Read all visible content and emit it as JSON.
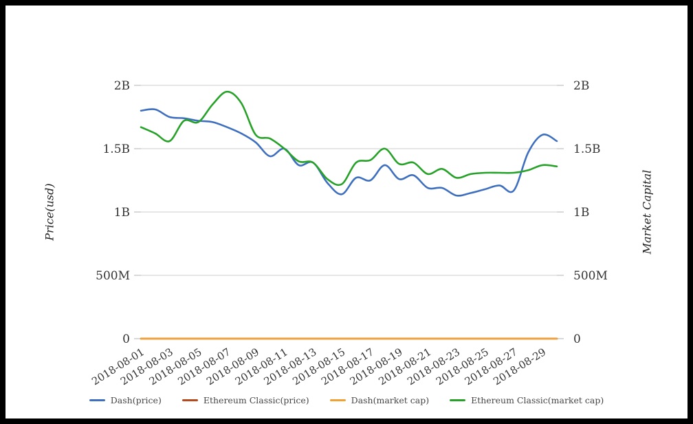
{
  "window": {
    "background_color": "#ffffff",
    "frame_border_color": "#000000"
  },
  "colors": {
    "grid": "#cccccc",
    "tick_mark": "#b0b0b0",
    "tick_label": "#333333",
    "axis_title": "#222222",
    "legend_text": "#444444"
  },
  "chart_data": {
    "type": "line",
    "title": "",
    "left_axis_label": "Price(usd)",
    "right_axis_label": "Market Capital",
    "grid": true,
    "legend_position": "bottom",
    "ylim": [
      0,
      2.15
    ],
    "y_ticks": [
      {
        "value": 0,
        "label": "0"
      },
      {
        "value": 0.5,
        "label": "500M"
      },
      {
        "value": 1,
        "label": "1B"
      },
      {
        "value": 1.5,
        "label": "1.5B"
      },
      {
        "value": 2,
        "label": "2B"
      }
    ],
    "x": [
      "2018-08-01",
      "2018-08-02",
      "2018-08-03",
      "2018-08-04",
      "2018-08-05",
      "2018-08-06",
      "2018-08-07",
      "2018-08-08",
      "2018-08-09",
      "2018-08-10",
      "2018-08-11",
      "2018-08-12",
      "2018-08-13",
      "2018-08-14",
      "2018-08-15",
      "2018-08-16",
      "2018-08-17",
      "2018-08-18",
      "2018-08-19",
      "2018-08-20",
      "2018-08-21",
      "2018-08-22",
      "2018-08-23",
      "2018-08-24",
      "2018-08-25",
      "2018-08-26",
      "2018-08-27",
      "2018-08-28",
      "2018-08-29",
      "2018-08-30"
    ],
    "x_tick_labels": [
      "2018-08-01",
      "2018-08-03",
      "2018-08-05",
      "2018-08-07",
      "2018-08-09",
      "2018-08-11",
      "2018-08-13",
      "2018-08-15",
      "2018-08-17",
      "2018-08-19",
      "2018-08-21",
      "2018-08-23",
      "2018-08-25",
      "2018-08-27",
      "2018-08-29"
    ],
    "unit": "billions",
    "series": [
      {
        "name": "Dash(price)",
        "color": "#3e6fbf",
        "values": [
          1.8,
          1.81,
          1.75,
          1.74,
          1.72,
          1.71,
          1.67,
          1.62,
          1.55,
          1.44,
          1.5,
          1.37,
          1.39,
          1.23,
          1.14,
          1.27,
          1.25,
          1.37,
          1.26,
          1.29,
          1.19,
          1.19,
          1.13,
          1.15,
          1.18,
          1.21,
          1.17,
          1.47,
          1.61,
          1.56
        ]
      },
      {
        "name": "Ethereum Classic(price)",
        "color": "#b5481d",
        "values": [
          0,
          0,
          0,
          0,
          0,
          0,
          0,
          0,
          0,
          0,
          0,
          0,
          0,
          0,
          0,
          0,
          0,
          0,
          0,
          0,
          0,
          0,
          0,
          0,
          0,
          0,
          0,
          0,
          0,
          0
        ]
      },
      {
        "name": "Dash(market cap)",
        "color": "#f0a132",
        "values": [
          0,
          0,
          0,
          0,
          0,
          0,
          0,
          0,
          0,
          0,
          0,
          0,
          0,
          0,
          0,
          0,
          0,
          0,
          0,
          0,
          0,
          0,
          0,
          0,
          0,
          0,
          0,
          0,
          0,
          0
        ]
      },
      {
        "name": "Ethereum Classic(market cap)",
        "color": "#27a228",
        "values": [
          1.67,
          1.62,
          1.56,
          1.72,
          1.71,
          1.85,
          1.95,
          1.86,
          1.61,
          1.58,
          1.5,
          1.4,
          1.39,
          1.26,
          1.22,
          1.39,
          1.41,
          1.5,
          1.38,
          1.39,
          1.3,
          1.34,
          1.27,
          1.3,
          1.31,
          1.31,
          1.31,
          1.33,
          1.37,
          1.36
        ]
      }
    ]
  }
}
